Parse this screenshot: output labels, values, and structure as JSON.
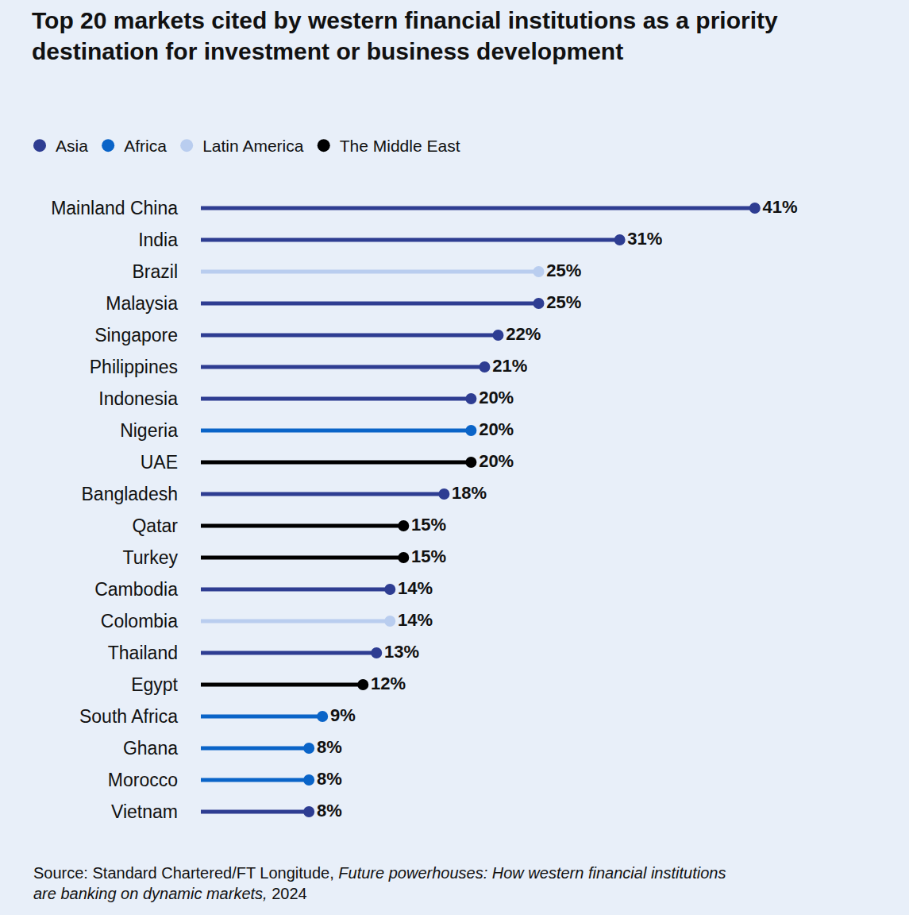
{
  "chart_data": {
    "type": "lollipop",
    "orientation": "horizontal",
    "title": "Top 20 markets cited by western financial institutions as a priority destination for investment or business development",
    "source": "Source: Standard Chartered/FT Longitude, Future powerhouses: How western financial institutions are banking on dynamic markets, 2024",
    "source_italic": "Future powerhouses: How western financial institutions are banking on dynamic markets",
    "categories": [
      "Mainland China",
      "India",
      "Brazil",
      "Malaysia",
      "Singapore",
      "Philippines",
      "Indonesia",
      "Nigeria",
      "UAE",
      "Bangladesh",
      "Qatar",
      "Turkey",
      "Cambodia",
      "Colombia",
      "Thailand",
      "Egypt",
      "South Africa",
      "Ghana",
      "Morocco",
      "Vietnam"
    ],
    "series": [
      {
        "name": "Asia",
        "color": "#2e3d92",
        "marker": "circle",
        "line_style": "solid",
        "values": [
          41,
          31,
          null,
          25,
          22,
          21,
          20,
          null,
          null,
          18,
          null,
          null,
          14,
          null,
          13,
          null,
          null,
          null,
          null,
          8
        ],
        "value_labels": [
          "41%",
          "31%",
          null,
          "25%",
          "22%",
          "21%",
          "20%",
          null,
          null,
          "18%",
          null,
          null,
          "14%",
          null,
          "13%",
          null,
          null,
          null,
          null,
          "8%"
        ]
      },
      {
        "name": "Africa",
        "color": "#0a64c8",
        "marker": "circle",
        "line_style": "solid",
        "values": [
          null,
          null,
          null,
          null,
          null,
          null,
          null,
          20,
          null,
          null,
          null,
          null,
          null,
          null,
          null,
          null,
          9,
          8,
          8,
          null
        ],
        "value_labels": [
          null,
          null,
          null,
          null,
          null,
          null,
          null,
          "20%",
          null,
          null,
          null,
          null,
          null,
          null,
          null,
          null,
          "9%",
          "8%",
          "8%",
          null
        ]
      },
      {
        "name": "Latin America",
        "color": "#b9cdef",
        "marker": "circle",
        "line_style": "solid",
        "values": [
          null,
          null,
          25,
          null,
          null,
          null,
          null,
          null,
          null,
          null,
          null,
          null,
          null,
          14,
          null,
          null,
          null,
          null,
          null,
          null
        ],
        "value_labels": [
          null,
          null,
          "25%",
          null,
          null,
          null,
          null,
          null,
          null,
          null,
          null,
          null,
          null,
          "14%",
          null,
          null,
          null,
          null,
          null,
          null
        ]
      },
      {
        "name": "The Middle East",
        "color": "#000000",
        "marker": "circle",
        "line_style": "solid",
        "values": [
          null,
          null,
          null,
          null,
          null,
          null,
          null,
          null,
          20,
          null,
          15,
          15,
          null,
          null,
          null,
          12,
          null,
          null,
          null,
          null
        ],
        "value_labels": [
          null,
          null,
          null,
          null,
          null,
          null,
          null,
          null,
          "20%",
          null,
          "15%",
          "15%",
          null,
          null,
          null,
          "12%",
          null,
          null,
          null,
          null
        ]
      }
    ],
    "xlim": [
      0,
      50
    ],
    "data_labels": true,
    "tick_labels": "y",
    "grid": false,
    "legend": "top left"
  }
}
